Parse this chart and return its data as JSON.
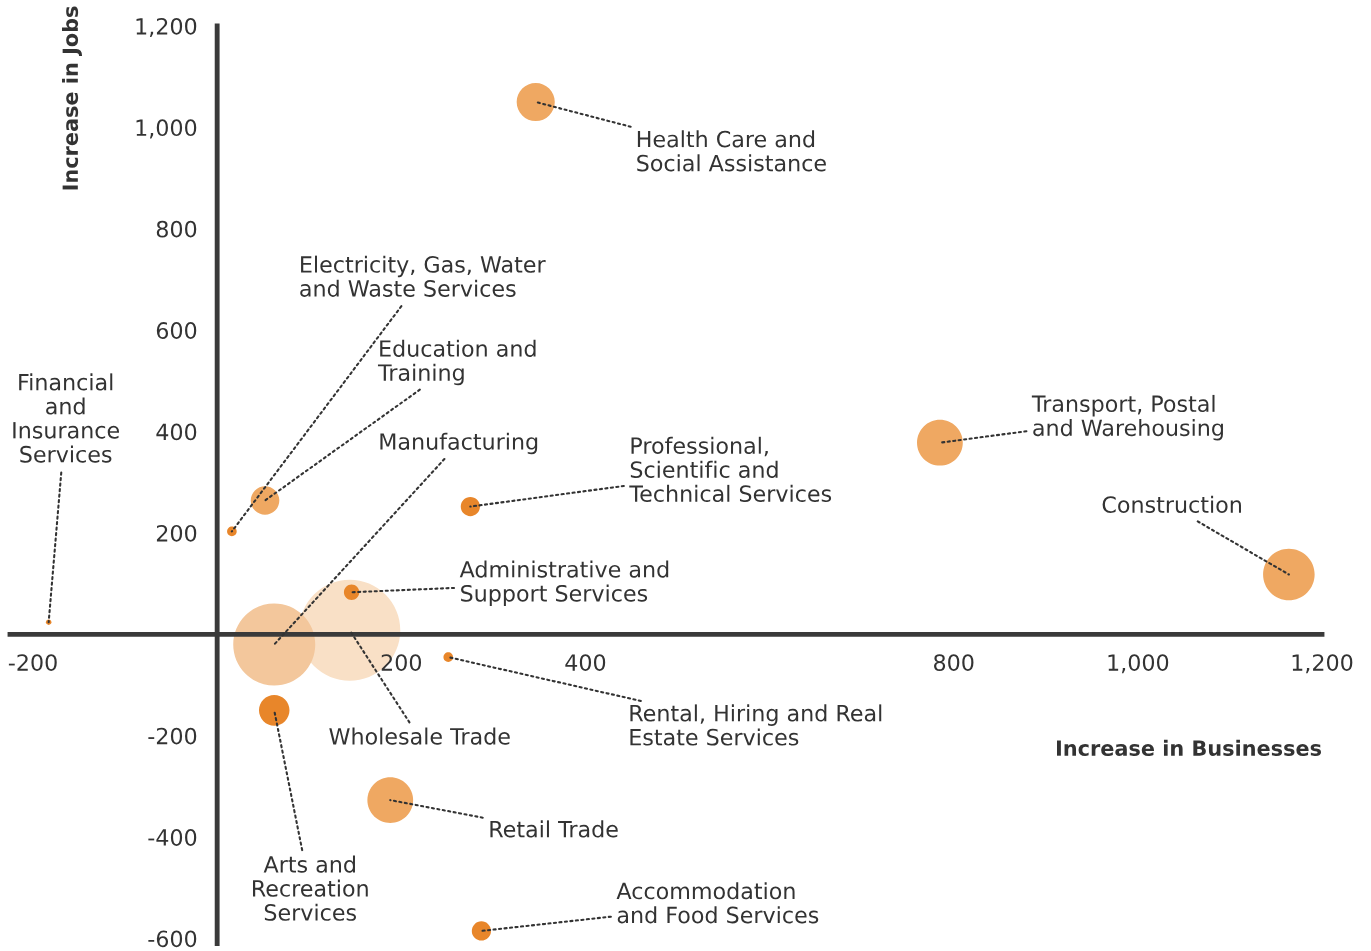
{
  "chart_data": {
    "type": "bubble",
    "xlabel": "Increase in Businesses",
    "ylabel": "Increase in Jobs",
    "x": [
      346,
      16,
      52,
      144,
      62,
      146,
      275,
      785,
      1164,
      -183,
      251,
      62,
      188,
      287
    ],
    "values": [
      1050,
      203,
      264,
      8,
      -20,
      83,
      252,
      378,
      118,
      24,
      -45,
      -150,
      -327,
      -585
    ],
    "sizes": [
      0.142,
      0.009,
      0.08,
      1,
      0.658,
      0.023,
      0.036,
      0.205,
      0.26,
      0.003,
      0.009,
      0.091,
      0.205,
      0.036
    ],
    "colors": [
      "#efa862",
      "#e8862a",
      "#efa862",
      "#f9e0c6",
      "#f3c79c",
      "#e8862a",
      "#e8862a",
      "#efa862",
      "#efa862",
      "#e8862a",
      "#e8862a",
      "#e8862a",
      "#efa862",
      "#e8862a"
    ],
    "annotations": [
      {
        "text": "Health Care and\nSocial Assistance",
        "x": 346,
        "y": 1050
      },
      {
        "text": "Electricity, Gas, Water\nand Waste Services",
        "x": 16,
        "y": 203
      },
      {
        "text": "Education and\nTraining",
        "x": 52,
        "y": 264
      },
      {
        "text": "Wholesale Trade",
        "x": 144,
        "y": 8
      },
      {
        "text": "Manufacturing",
        "x": 62,
        "y": -20
      },
      {
        "text": "Administrative and\nSupport Services",
        "x": 146,
        "y": 83
      },
      {
        "text": "Professional,\nScientific and\nTechnical Services",
        "x": 275,
        "y": 252
      },
      {
        "text": "Transport, Postal\nand Warehousing",
        "x": 785,
        "y": 378
      },
      {
        "text": "Construction",
        "x": 1164,
        "y": 118
      },
      {
        "text": "Financial\nand\nInsurance\nServices",
        "x": -183,
        "y": 24
      },
      {
        "text": "Rental, Hiring and Real\nEstate Services",
        "x": 251,
        "y": -45
      },
      {
        "text": "Arts and\nRecreation\nServices",
        "x": 62,
        "y": -150
      },
      {
        "text": "Retail Trade",
        "x": 188,
        "y": -327
      },
      {
        "text": "Accommodation\nand Food Services",
        "x": 287,
        "y": -585
      }
    ],
    "xlim": [
      -225,
      1200
    ],
    "ylim": [
      -610,
      1200
    ],
    "xticks": [
      -200,
      200,
      400,
      800,
      {
        "value": 1000,
        "label": "1,000"
      },
      {
        "value": 1200,
        "label": "1,200"
      }
    ],
    "yticks": [
      {
        "value": 1200,
        "label": "1,200"
      },
      {
        "value": 1000,
        "label": "1,000"
      },
      800,
      600,
      400,
      200,
      -200,
      -400,
      -600
    ]
  }
}
